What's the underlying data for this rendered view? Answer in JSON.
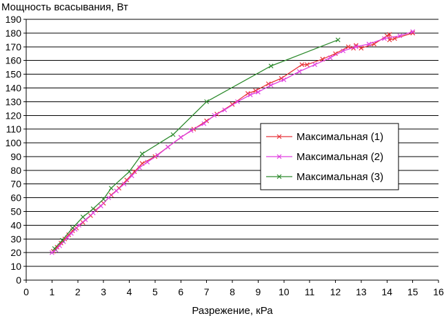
{
  "chart_data": {
    "type": "line",
    "ylabel": "Мощность всасывания, Вт",
    "xlabel": "Разрежение, кРа",
    "xlim": [
      0,
      16
    ],
    "ylim": [
      0,
      190
    ],
    "xticks": [
      "0",
      "1",
      "2",
      "3",
      "4",
      "5",
      "6",
      "7",
      "8",
      "9",
      "10",
      "11",
      "12",
      "13",
      "14",
      "15",
      "16"
    ],
    "yticks": [
      "0",
      "10",
      "20",
      "30",
      "40",
      "50",
      "60",
      "70",
      "80",
      "90",
      "100",
      "110",
      "120",
      "130",
      "140",
      "150",
      "160",
      "170",
      "180",
      "190"
    ],
    "grid": true,
    "legend_position": "right",
    "series": [
      {
        "name": "Максимальная (1)",
        "color": "#e8333a",
        "marker": "x",
        "points": [
          [
            1.05,
            21
          ],
          [
            1.2,
            24
          ],
          [
            1.35,
            27
          ],
          [
            1.5,
            30
          ],
          [
            1.65,
            33
          ],
          [
            1.8,
            36
          ],
          [
            1.95,
            38
          ],
          [
            2.2,
            42
          ],
          [
            2.5,
            47
          ],
          [
            2.7,
            51
          ],
          [
            3.0,
            56
          ],
          [
            3.3,
            62
          ],
          [
            3.6,
            67
          ],
          [
            3.9,
            73
          ],
          [
            4.2,
            79
          ],
          [
            4.5,
            85
          ],
          [
            5.0,
            90
          ],
          [
            5.5,
            97
          ],
          [
            6.0,
            104
          ],
          [
            6.5,
            110
          ],
          [
            7.0,
            116
          ],
          [
            7.4,
            121
          ],
          [
            8.0,
            128
          ],
          [
            8.6,
            136
          ],
          [
            8.9,
            138
          ],
          [
            9.4,
            143
          ],
          [
            9.9,
            147
          ],
          [
            10.7,
            157
          ],
          [
            10.9,
            157
          ],
          [
            11.5,
            161
          ],
          [
            12.0,
            165
          ],
          [
            12.5,
            170
          ],
          [
            12.7,
            169
          ],
          [
            12.8,
            171
          ],
          [
            13.0,
            169
          ],
          [
            13.5,
            172
          ],
          [
            14.0,
            178
          ],
          [
            14.1,
            179
          ],
          [
            14.1,
            175
          ],
          [
            14.3,
            176
          ],
          [
            15.0,
            180
          ]
        ]
      },
      {
        "name": "Максимальная (2)",
        "color": "#e040e0",
        "marker": "x",
        "points": [
          [
            1.0,
            20
          ],
          [
            1.15,
            22
          ],
          [
            1.3,
            25
          ],
          [
            1.45,
            28
          ],
          [
            1.6,
            31
          ],
          [
            1.75,
            34
          ],
          [
            1.9,
            37
          ],
          [
            2.05,
            40
          ],
          [
            2.3,
            44
          ],
          [
            2.6,
            49
          ],
          [
            2.9,
            54
          ],
          [
            3.2,
            60
          ],
          [
            3.5,
            65
          ],
          [
            3.8,
            70
          ],
          [
            4.1,
            76
          ],
          [
            4.4,
            82
          ],
          [
            4.7,
            86
          ],
          [
            5.1,
            91
          ],
          [
            5.5,
            97
          ],
          [
            6.0,
            104
          ],
          [
            6.4,
            109
          ],
          [
            6.9,
            114
          ],
          [
            7.3,
            120
          ],
          [
            7.7,
            124
          ],
          [
            8.2,
            130
          ],
          [
            8.7,
            135
          ],
          [
            9.0,
            137
          ],
          [
            9.5,
            142
          ],
          [
            10.0,
            146
          ],
          [
            10.6,
            152
          ],
          [
            11.2,
            157
          ],
          [
            11.8,
            162
          ],
          [
            12.3,
            167
          ],
          [
            12.8,
            170
          ],
          [
            13.3,
            172
          ],
          [
            13.9,
            176
          ],
          [
            14.5,
            178
          ],
          [
            15.0,
            181
          ]
        ]
      },
      {
        "name": "Максимальная (3)",
        "color": "#2e8b2e",
        "marker": "x",
        "points": [
          [
            1.1,
            23
          ],
          [
            1.4,
            29
          ],
          [
            1.8,
            38
          ],
          [
            2.2,
            46
          ],
          [
            2.6,
            52
          ],
          [
            3.0,
            59
          ],
          [
            3.3,
            67
          ],
          [
            4.0,
            79
          ],
          [
            4.5,
            92
          ],
          [
            5.7,
            106
          ],
          [
            7.0,
            130
          ],
          [
            9.5,
            156
          ],
          [
            12.1,
            175
          ]
        ]
      }
    ]
  }
}
